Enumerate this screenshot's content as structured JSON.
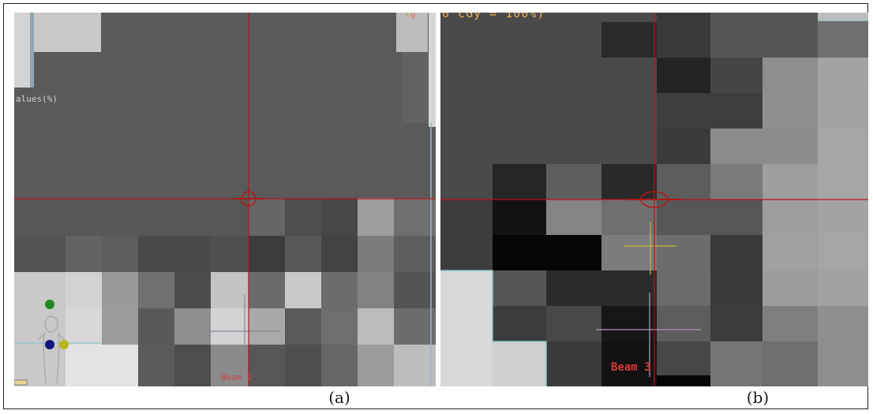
{
  "figure": {
    "caption_a": "(a)",
    "caption_b": "(b)"
  },
  "panel_a": {
    "values_label": "alues(%)",
    "beam_label": "Beam 2",
    "header_fragment": "lg"
  },
  "panel_b": {
    "header_fragment": "0 cGy = 100%)",
    "beam_label": "Beam 3"
  },
  "colors": {
    "crosshair": "#b01818",
    "beam_cross_a": "#8e86a0",
    "beam_cross_b": "#b28fb8",
    "isocenter_b_cross": "#b8b040",
    "orientation_head": "#1e8a1e",
    "orientation_left": "#101a7a",
    "orientation_right": "#b8b81e"
  },
  "icons": {
    "crosshair": "crosshair-icon",
    "isocenter": "isocenter-ring-icon",
    "orientation": "patient-orientation-icon"
  }
}
